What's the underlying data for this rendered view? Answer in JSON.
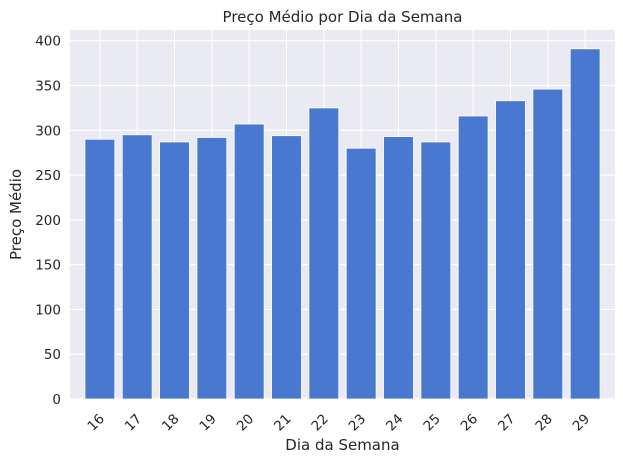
{
  "chart_data": {
    "type": "bar",
    "title": "Preço Médio por Dia da Semana",
    "xlabel": "Dia da Semana",
    "ylabel": "Preço Médio",
    "categories": [
      "16",
      "17",
      "18",
      "19",
      "20",
      "21",
      "22",
      "23",
      "24",
      "25",
      "26",
      "27",
      "28",
      "29"
    ],
    "values": [
      290,
      295,
      287,
      292,
      307,
      294,
      325,
      280,
      293,
      287,
      316,
      333,
      346,
      391
    ],
    "ylim": [
      0,
      412
    ],
    "yticks": [
      "0",
      "50",
      "100",
      "150",
      "200",
      "250",
      "300",
      "350",
      "400"
    ],
    "grid": true,
    "bar_color": "#4878d0",
    "background_color": "#eaeaf2"
  }
}
